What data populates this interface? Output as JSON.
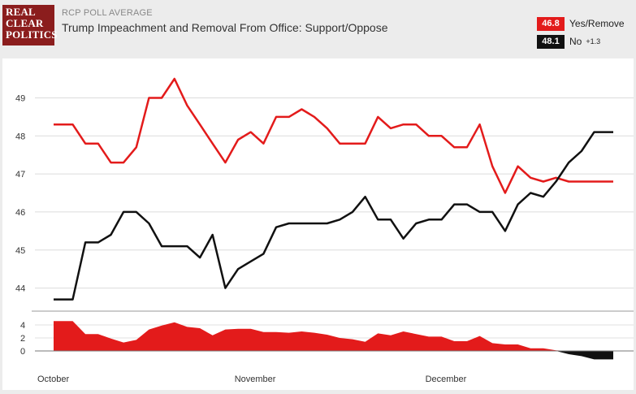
{
  "header": {
    "logo_lines": [
      "REAL",
      "CLEAR",
      "POLITICS"
    ],
    "kicker": "RCP POLL AVERAGE",
    "title": "Trump Impeachment and Removal From Office: Support/Oppose"
  },
  "legend": {
    "items": [
      {
        "value": "46.8",
        "label": "Yes/Remove",
        "change": "",
        "color": "#e31b1b"
      },
      {
        "value": "48.1",
        "label": "No",
        "change": "+1.3",
        "color": "#111111"
      }
    ]
  },
  "chart_data": {
    "type": "line",
    "x": [
      0,
      3,
      5,
      7,
      9,
      11,
      13,
      15,
      17,
      19,
      21,
      23,
      25,
      27,
      29,
      31,
      33,
      35,
      37,
      39,
      41,
      43,
      45,
      47,
      49,
      51,
      53,
      55,
      57,
      59,
      61,
      63,
      65,
      67,
      69,
      71,
      73,
      75,
      77,
      79,
      81,
      83,
      85,
      87,
      88
    ],
    "x_unit": "days since Oct 1",
    "xticks": [
      {
        "x": 0,
        "label": "October"
      },
      {
        "x": 31,
        "label": "November"
      },
      {
        "x": 61,
        "label": "December"
      }
    ],
    "ylim": [
      43.5,
      49.8
    ],
    "yticks": [
      44,
      45,
      46,
      47,
      48,
      49
    ],
    "series": [
      {
        "name": "Yes/Remove",
        "color": "#e31b1b",
        "values": [
          48.3,
          48.3,
          47.8,
          47.8,
          47.3,
          47.3,
          47.7,
          49.0,
          49.0,
          49.5,
          48.8,
          48.3,
          47.8,
          47.3,
          47.9,
          48.1,
          47.8,
          48.5,
          48.5,
          48.7,
          48.5,
          48.2,
          47.8,
          47.8,
          47.8,
          48.5,
          48.2,
          48.3,
          48.3,
          48.0,
          48.0,
          47.7,
          47.7,
          48.3,
          47.2,
          46.5,
          47.2,
          46.9,
          46.8,
          46.9,
          46.8,
          46.8,
          46.8,
          46.8,
          46.8
        ]
      },
      {
        "name": "No",
        "color": "#111111",
        "values": [
          43.7,
          43.7,
          45.2,
          45.2,
          45.4,
          46.0,
          46.0,
          45.7,
          45.1,
          45.1,
          45.1,
          44.8,
          45.4,
          44.0,
          44.5,
          44.7,
          44.9,
          45.6,
          45.7,
          45.7,
          45.7,
          45.7,
          45.8,
          46.0,
          46.4,
          45.8,
          45.8,
          45.3,
          45.7,
          45.8,
          45.8,
          46.2,
          46.2,
          46.0,
          46.0,
          45.5,
          46.2,
          46.5,
          46.4,
          46.8,
          47.3,
          47.6,
          48.1,
          48.1,
          48.1
        ]
      }
    ],
    "spread": {
      "ylim": [
        -1.5,
        5
      ],
      "yticks": [
        0,
        2,
        4
      ],
      "ytick_labels": [
        "0",
        "2",
        "4"
      ]
    }
  }
}
